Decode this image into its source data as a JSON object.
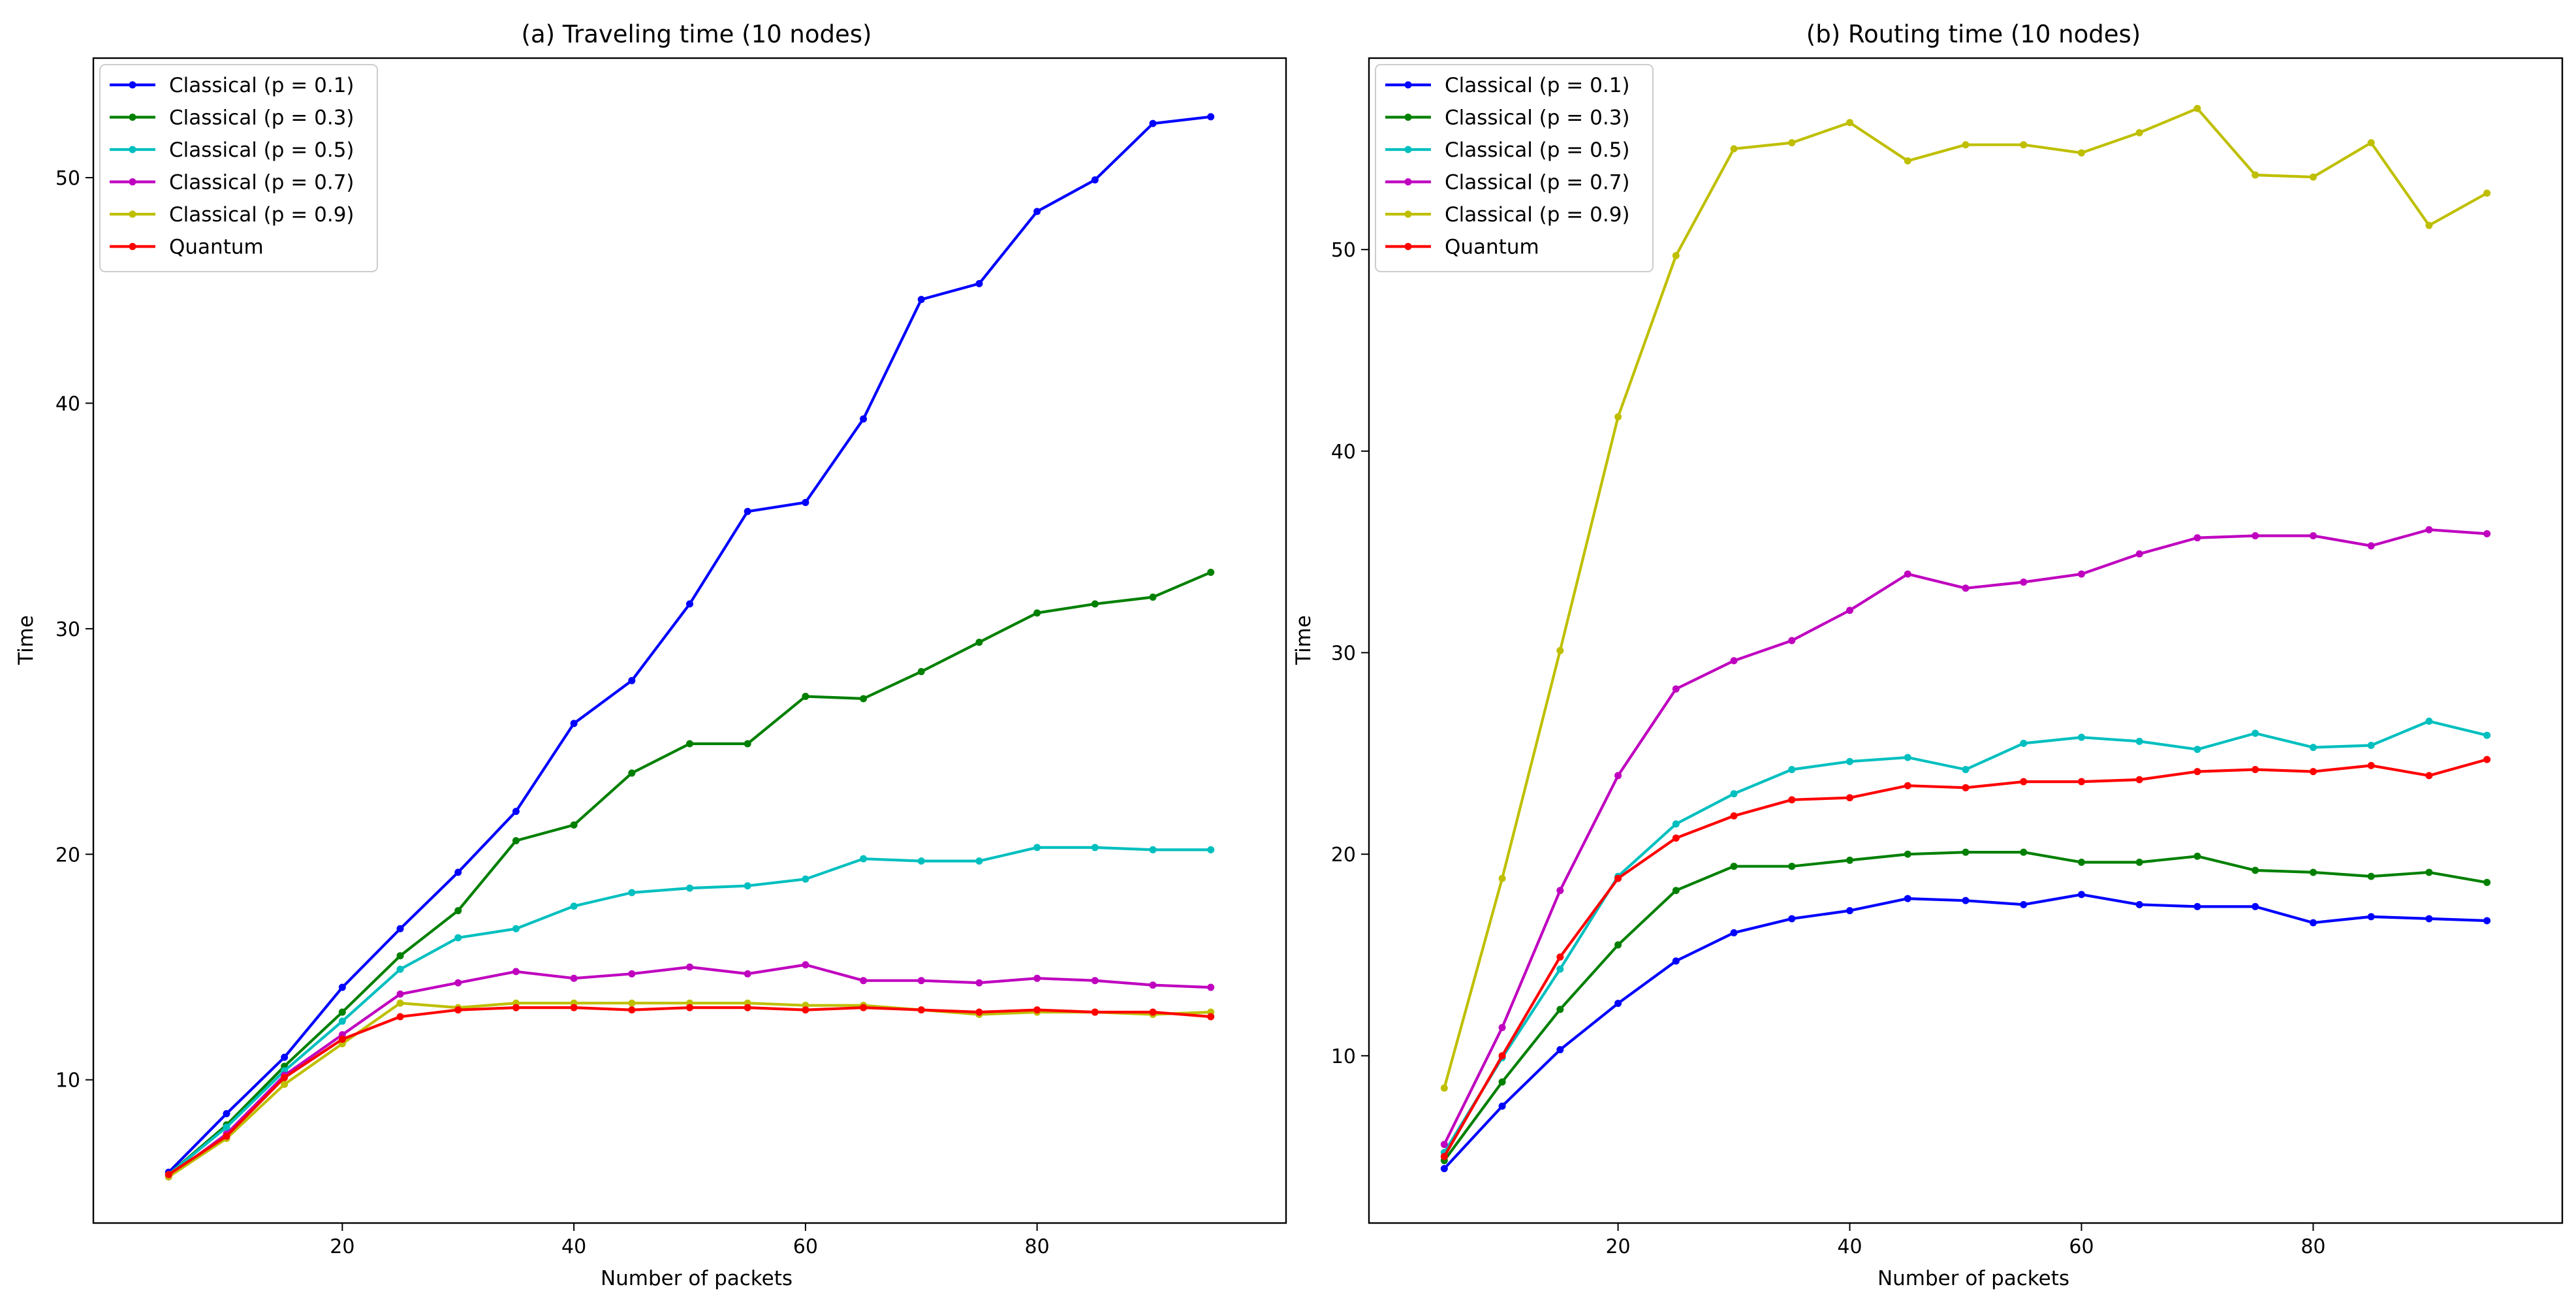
{
  "figure": {
    "colors": {
      "Classical (p = 0.1)": "#0000ff",
      "Classical (p = 0.3)": "#008000",
      "Classical (p = 0.5)": "#00bfbf",
      "Classical (p = 0.7)": "#bf00bf",
      "Classical (p = 0.9)": "#bfbf00",
      "Quantum": "#ff0000"
    }
  },
  "chart_data": [
    {
      "type": "line",
      "title": "(a) Traveling time (10 nodes)",
      "xlabel": "Number of packets",
      "ylabel": "Time",
      "xlim": [
        -1.5,
        101.5
      ],
      "ylim": [
        3.65,
        55.3
      ],
      "xticks": [
        20,
        40,
        60,
        80
      ],
      "yticks": [
        10,
        20,
        30,
        40,
        50
      ],
      "legend_position": "top-left",
      "x": [
        5,
        10,
        15,
        20,
        25,
        30,
        35,
        40,
        45,
        50,
        55,
        60,
        65,
        70,
        75,
        80,
        85,
        90,
        95
      ],
      "series": [
        {
          "name": "Classical (p = 0.1)",
          "values": [
            5.9,
            8.5,
            11.0,
            14.1,
            16.7,
            19.2,
            21.9,
            25.8,
            27.7,
            31.1,
            35.2,
            35.6,
            39.3,
            44.6,
            45.3,
            48.5,
            49.9,
            52.4,
            52.7
          ]
        },
        {
          "name": "Classical (p = 0.3)",
          "values": [
            5.8,
            8.0,
            10.6,
            13.0,
            15.5,
            17.5,
            20.6,
            21.3,
            23.6,
            24.9,
            24.9,
            27.0,
            26.9,
            28.1,
            29.4,
            30.7,
            31.1,
            31.4,
            32.5
          ]
        },
        {
          "name": "Classical (p = 0.5)",
          "values": [
            5.8,
            7.9,
            10.4,
            12.6,
            14.9,
            16.3,
            16.7,
            17.7,
            18.3,
            18.5,
            18.6,
            18.9,
            19.8,
            19.7,
            19.7,
            20.3,
            20.3,
            20.2,
            20.2
          ]
        },
        {
          "name": "Classical (p = 0.7)",
          "values": [
            5.7,
            7.6,
            10.2,
            12.0,
            13.8,
            14.3,
            14.8,
            14.5,
            14.7,
            15.0,
            14.7,
            15.1,
            14.4,
            14.4,
            14.3,
            14.5,
            14.4,
            14.2,
            14.1
          ]
        },
        {
          "name": "Classical (p = 0.9)",
          "values": [
            5.7,
            7.4,
            9.8,
            11.6,
            13.4,
            13.2,
            13.4,
            13.4,
            13.4,
            13.4,
            13.4,
            13.3,
            13.3,
            13.1,
            12.9,
            13.0,
            13.0,
            12.9,
            13.0
          ]
        },
        {
          "name": "Quantum",
          "values": [
            5.8,
            7.5,
            10.1,
            11.8,
            12.8,
            13.1,
            13.2,
            13.2,
            13.1,
            13.2,
            13.2,
            13.1,
            13.2,
            13.1,
            13.0,
            13.1,
            13.0,
            13.0,
            12.8
          ]
        }
      ]
    },
    {
      "type": "line",
      "title": "(b) Routing time (10 nodes)",
      "xlabel": "Number of packets",
      "ylabel": "Time",
      "xlim": [
        -1.5,
        101.5
      ],
      "ylim": [
        1.7,
        59.5
      ],
      "xticks": [
        20,
        40,
        60,
        80
      ],
      "yticks": [
        10,
        20,
        30,
        40,
        50
      ],
      "legend_position": "top-left",
      "x": [
        5,
        10,
        15,
        20,
        25,
        30,
        35,
        40,
        45,
        50,
        55,
        60,
        65,
        70,
        75,
        80,
        85,
        90,
        95
      ],
      "series": [
        {
          "name": "Classical (p = 0.1)",
          "values": [
            4.4,
            7.5,
            10.3,
            12.6,
            14.7,
            16.1,
            16.8,
            17.2,
            17.8,
            17.7,
            17.5,
            18.0,
            17.5,
            17.4,
            17.4,
            16.6,
            16.9,
            16.8,
            16.7
          ]
        },
        {
          "name": "Classical (p = 0.3)",
          "values": [
            4.8,
            8.7,
            12.3,
            15.5,
            18.2,
            19.4,
            19.4,
            19.7,
            20.0,
            20.1,
            20.1,
            19.6,
            19.6,
            19.9,
            19.2,
            19.1,
            18.9,
            19.1,
            18.6
          ]
        },
        {
          "name": "Classical (p = 0.5)",
          "values": [
            5.2,
            9.9,
            14.3,
            18.9,
            21.5,
            23.0,
            24.2,
            24.6,
            24.8,
            24.2,
            25.5,
            25.8,
            25.6,
            25.2,
            26.0,
            25.3,
            25.4,
            26.6,
            25.9
          ]
        },
        {
          "name": "Classical (p = 0.7)",
          "values": [
            5.6,
            11.4,
            18.2,
            23.9,
            28.2,
            29.6,
            30.6,
            32.1,
            33.9,
            33.2,
            33.5,
            33.9,
            34.9,
            35.7,
            35.8,
            35.8,
            35.3,
            36.1,
            35.9
          ]
        },
        {
          "name": "Classical (p = 0.9)",
          "values": [
            8.4,
            18.8,
            30.1,
            41.7,
            49.7,
            55.0,
            55.3,
            56.3,
            54.4,
            55.2,
            55.2,
            54.8,
            55.8,
            57.0,
            53.7,
            53.6,
            55.3,
            51.2,
            52.8
          ]
        },
        {
          "name": "Quantum",
          "values": [
            5.0,
            10.0,
            14.9,
            18.8,
            20.8,
            21.9,
            22.7,
            22.8,
            23.4,
            23.3,
            23.6,
            23.6,
            23.7,
            24.1,
            24.2,
            24.1,
            24.4,
            23.9,
            24.7
          ]
        }
      ]
    }
  ]
}
